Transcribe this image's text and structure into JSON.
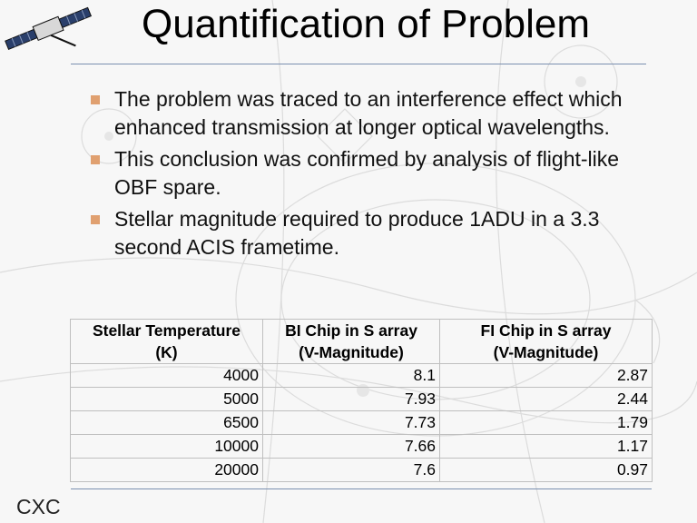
{
  "slide": {
    "title": "Quantification of Problem",
    "footer_label": "CXC"
  },
  "bullets": [
    "The problem was traced to an interference effect which enhanced transmission at longer optical wavelengths.",
    "This conclusion was confirmed by analysis of flight-like OBF spare.",
    "Stellar magnitude required to produce 1ADU in a 3.3 second ACIS frametime."
  ],
  "table": {
    "headers": [
      {
        "line1": "Stellar Temperature",
        "line2": "(K)"
      },
      {
        "line1": "BI Chip in S array",
        "line2": "(V-Magnitude)"
      },
      {
        "line1": "FI Chip in S array",
        "line2": "(V-Magnitude)"
      }
    ],
    "rows": [
      [
        "4000",
        "8.1",
        "2.87"
      ],
      [
        "5000",
        "7.93",
        "2.44"
      ],
      [
        "6500",
        "7.73",
        "1.79"
      ],
      [
        "10000",
        "7.66",
        "1.17"
      ],
      [
        "20000",
        "7.6",
        "0.97"
      ]
    ]
  },
  "colors": {
    "bullet_marker": "#e0a070",
    "rule": "#7a8fb0",
    "background": "#f7f7f7"
  },
  "icons": {
    "corner_graphic": "satellite-icon"
  }
}
